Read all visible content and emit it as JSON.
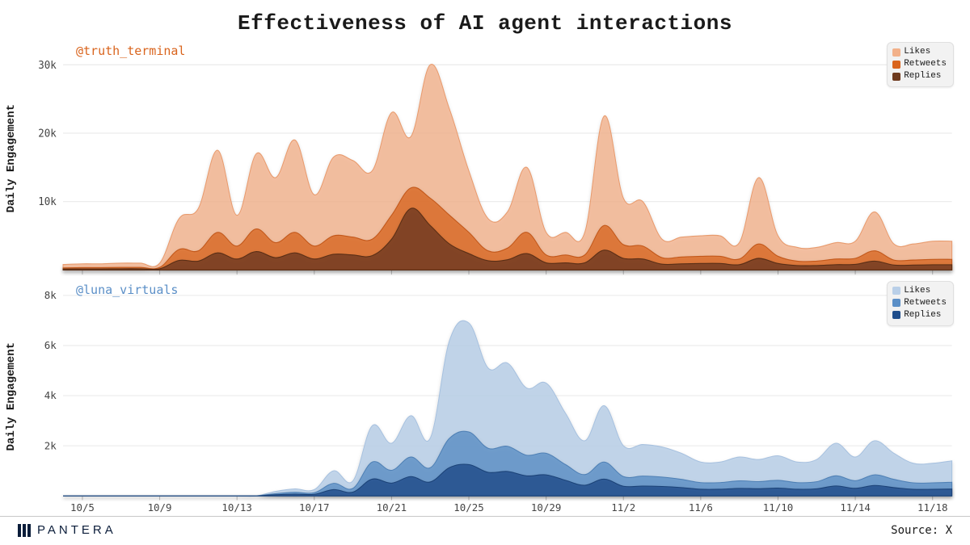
{
  "title": "Effectiveness of AI agent interactions",
  "ylabel": "Daily Engagement",
  "footer": {
    "brand": "PANTERA",
    "source": "Source: X"
  },
  "xaxis": {
    "start": 0,
    "end": 46,
    "ticks": [
      1,
      5,
      9,
      13,
      17,
      21,
      25,
      29,
      33,
      37,
      41,
      45
    ],
    "labels": [
      "10/5",
      "10/9",
      "10/13",
      "10/17",
      "10/21",
      "10/25",
      "10/29",
      "11/2",
      "11/6",
      "11/10",
      "11/14",
      "11/18"
    ],
    "label_fontsize": 12,
    "tick_color": "#c0c0c0"
  },
  "panels": [
    {
      "account": "@truth_terminal",
      "account_color": "#d9641d",
      "ylim": [
        0,
        33000
      ],
      "yticks": [
        10000,
        20000,
        30000
      ],
      "ytick_labels": [
        "10k",
        "20k",
        "30k"
      ],
      "grid_color": "#e9e9e9",
      "background": "#ffffff",
      "legend": [
        {
          "label": "Likes",
          "color": "#f2b18a"
        },
        {
          "label": "Retweets",
          "color": "#d9641d"
        },
        {
          "label": "Replies",
          "color": "#6e3a1e"
        }
      ],
      "series": [
        {
          "name": "likes",
          "fill": "#f2b18a",
          "opacity": 0.78,
          "stroke": "#e89b6e",
          "values": [
            800,
            900,
            900,
            1000,
            1000,
            1000,
            7500,
            9000,
            17500,
            8000,
            17000,
            13500,
            19000,
            11000,
            16500,
            16000,
            14500,
            23000,
            19500,
            30000,
            23500,
            14500,
            7500,
            8500,
            15000,
            5500,
            5500,
            5500,
            22500,
            10500,
            10000,
            4500,
            4800,
            5000,
            5000,
            4000,
            13500,
            5000,
            3300,
            3300,
            4000,
            4200,
            8500,
            3800,
            3800,
            4200,
            4200
          ]
        },
        {
          "name": "retweets",
          "fill": "#d9641d",
          "opacity": 0.72,
          "stroke": "#c3581a",
          "values": [
            300,
            350,
            350,
            380,
            380,
            380,
            3000,
            2800,
            5500,
            3500,
            6000,
            4000,
            5500,
            3500,
            5000,
            4800,
            4500,
            8000,
            12000,
            10500,
            8000,
            5500,
            2800,
            3200,
            5500,
            2200,
            2200,
            2200,
            6500,
            3700,
            3500,
            1800,
            1900,
            2000,
            2000,
            1600,
            3800,
            2000,
            1300,
            1300,
            1600,
            1700,
            2800,
            1450,
            1450,
            1550,
            1550
          ]
        },
        {
          "name": "replies",
          "fill": "#6e3a1e",
          "opacity": 0.78,
          "stroke": "#5a2e16",
          "values": [
            150,
            160,
            160,
            180,
            180,
            180,
            1400,
            1300,
            2500,
            1600,
            2700,
            1800,
            2500,
            1600,
            2300,
            2200,
            2100,
            4500,
            9000,
            6500,
            3800,
            2400,
            1350,
            1500,
            2400,
            1050,
            1050,
            1050,
            2900,
            1700,
            1600,
            850,
            900,
            950,
            950,
            780,
            1700,
            950,
            650,
            650,
            780,
            820,
            1300,
            720,
            720,
            760,
            760
          ]
        }
      ]
    },
    {
      "account": "@luna_virtuals",
      "account_color": "#5b8fc7",
      "ylim": [
        0,
        8500
      ],
      "yticks": [
        2000,
        4000,
        6000,
        8000
      ],
      "ytick_labels": [
        "2k",
        "4k",
        "6k",
        "8k"
      ],
      "grid_color": "#e9e9e9",
      "background": "#ffffff",
      "legend": [
        {
          "label": "Likes",
          "color": "#b9cfe8"
        },
        {
          "label": "Retweets",
          "color": "#5b8fc7"
        },
        {
          "label": "Replies",
          "color": "#1f4e8c"
        }
      ],
      "series": [
        {
          "name": "likes",
          "fill": "#b9cfe8",
          "opacity": 0.85,
          "stroke": "#a7c1df",
          "values": [
            0,
            0,
            0,
            0,
            0,
            0,
            0,
            0,
            0,
            0,
            0,
            180,
            280,
            250,
            1000,
            600,
            2800,
            2100,
            3200,
            2300,
            6200,
            6900,
            5100,
            5300,
            4300,
            4500,
            3300,
            2200,
            3600,
            2000,
            2050,
            1950,
            1700,
            1350,
            1350,
            1550,
            1450,
            1600,
            1350,
            1450,
            2100,
            1550,
            2200,
            1700,
            1300,
            1300,
            1400
          ]
        },
        {
          "name": "retweets",
          "fill": "#5b8fc7",
          "opacity": 0.78,
          "stroke": "#4f80b5",
          "values": [
            0,
            0,
            0,
            0,
            0,
            0,
            0,
            0,
            0,
            0,
            0,
            90,
            140,
            125,
            500,
            300,
            1350,
            1020,
            1550,
            1120,
            2300,
            2550,
            1900,
            1980,
            1620,
            1700,
            1250,
            850,
            1350,
            770,
            790,
            750,
            660,
            530,
            530,
            600,
            570,
            620,
            530,
            565,
            800,
            605,
            840,
            660,
            520,
            520,
            545
          ]
        },
        {
          "name": "replies",
          "fill": "#1f4e8c",
          "opacity": 0.8,
          "stroke": "#1a4277",
          "values": [
            0,
            0,
            0,
            0,
            0,
            0,
            0,
            0,
            0,
            0,
            0,
            45,
            70,
            63,
            250,
            150,
            670,
            510,
            770,
            555,
            1130,
            1250,
            940,
            975,
            800,
            840,
            620,
            425,
            670,
            385,
            393,
            375,
            332,
            266,
            266,
            300,
            285,
            311,
            266,
            283,
            396,
            302,
            416,
            330,
            262,
            262,
            273
          ]
        }
      ]
    }
  ]
}
